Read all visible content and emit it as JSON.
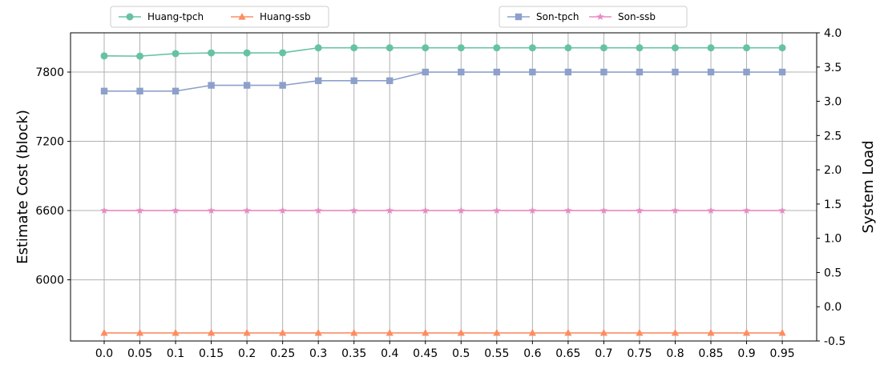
{
  "chart_data": {
    "type": "line",
    "x": [
      "0.0",
      "0.05",
      "0.1",
      "0.15",
      "0.2",
      "0.25",
      "0.3",
      "0.35",
      "0.4",
      "0.45",
      "0.5",
      "0.55",
      "0.6",
      "0.65",
      "0.7",
      "0.75",
      "0.8",
      "0.85",
      "0.9",
      "0.95"
    ],
    "ylabel_left": "Estimate Cost (block)",
    "ylabel_right": "System Load",
    "left_axis": {
      "ticks": [
        6000,
        6600,
        7200,
        7800
      ],
      "range": [
        5470,
        8140
      ]
    },
    "right_axis": {
      "ticks": [
        "-0.5",
        "0.0",
        "0.5",
        "1.0",
        "1.5",
        "2.0",
        "2.5",
        "3.0",
        "3.5",
        "4.0"
      ],
      "range": [
        -0.5,
        4.0
      ]
    },
    "grid": true,
    "series": [
      {
        "name": "Huang-tpch",
        "axis": "left",
        "color": "#66c2a5",
        "marker": "circle",
        "values": [
          7940,
          7938,
          7960,
          7966,
          7966,
          7967,
          8010,
          8010,
          8010,
          8010,
          8010,
          8010,
          8010,
          8010,
          8010,
          8010,
          8010,
          8010,
          8010,
          8010
        ]
      },
      {
        "name": "Huang-ssb",
        "axis": "left",
        "color": "#fc8d62",
        "marker": "triangle",
        "values": [
          5540,
          5540,
          5540,
          5540,
          5540,
          5540,
          5540,
          5540,
          5540,
          5540,
          5540,
          5540,
          5540,
          5540,
          5540,
          5540,
          5540,
          5540,
          5540,
          5540
        ]
      },
      {
        "name": "Son-tpch",
        "axis": "left",
        "color": "#8da0cb",
        "marker": "square",
        "values": [
          7635,
          7635,
          7635,
          7685,
          7685,
          7685,
          7725,
          7725,
          7725,
          7800,
          7800,
          7800,
          7800,
          7800,
          7800,
          7800,
          7800,
          7800,
          7800,
          7800
        ]
      },
      {
        "name": "Son-ssb",
        "axis": "left",
        "color": "#e78ac3",
        "marker": "star",
        "values": [
          6600,
          6600,
          6600,
          6600,
          6600,
          6600,
          6600,
          6600,
          6600,
          6600,
          6600,
          6600,
          6600,
          6600,
          6600,
          6600,
          6600,
          6600,
          6600,
          6600
        ]
      }
    ],
    "legends": [
      {
        "placement": "top-left",
        "entries": [
          0,
          1
        ]
      },
      {
        "placement": "top-right",
        "entries": [
          2,
          3
        ]
      }
    ]
  }
}
